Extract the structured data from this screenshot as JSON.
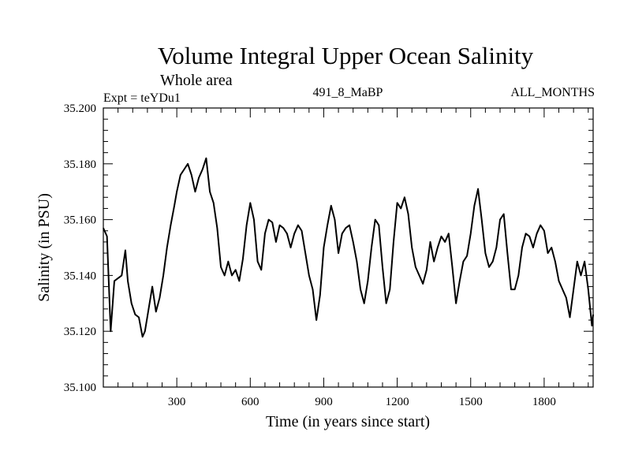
{
  "chart_data": {
    "type": "line",
    "title": "Volume Integral Upper Ocean Salinity",
    "subtitle": "Whole area",
    "experiment_label": "Expt = teYDu1",
    "run_label": "491_8_MaBP",
    "months_label": "ALL_MONTHS",
    "xlabel": "Time (in years since start)",
    "ylabel": "Salinity (in PSU)",
    "xlim": [
      0,
      2000
    ],
    "ylim": [
      35.1,
      35.2
    ],
    "xticks": [
      300,
      600,
      900,
      1200,
      1500,
      1800
    ],
    "xtick_labels": [
      "300",
      "600",
      "900",
      "1200",
      "1500",
      "1800"
    ],
    "yticks": [
      35.1,
      35.12,
      35.14,
      35.16,
      35.18,
      35.2
    ],
    "ytick_labels": [
      "35.100",
      "35.120",
      "35.140",
      "35.160",
      "35.180",
      "35.200"
    ],
    "grid": false,
    "series": [
      {
        "name": "Salinity",
        "x": [
          0,
          15,
          30,
          45,
          60,
          75,
          90,
          100,
          115,
          130,
          145,
          160,
          170,
          185,
          200,
          215,
          230,
          245,
          260,
          275,
          290,
          300,
          315,
          330,
          345,
          360,
          375,
          390,
          405,
          420,
          435,
          450,
          465,
          480,
          495,
          510,
          525,
          540,
          555,
          570,
          585,
          600,
          615,
          630,
          645,
          660,
          675,
          690,
          705,
          720,
          735,
          750,
          765,
          780,
          795,
          810,
          825,
          840,
          855,
          870,
          885,
          900,
          915,
          930,
          945,
          960,
          975,
          990,
          1005,
          1020,
          1035,
          1050,
          1065,
          1080,
          1095,
          1110,
          1125,
          1140,
          1155,
          1170,
          1185,
          1200,
          1215,
          1230,
          1245,
          1260,
          1275,
          1290,
          1305,
          1320,
          1335,
          1350,
          1365,
          1380,
          1395,
          1410,
          1425,
          1440,
          1455,
          1470,
          1485,
          1500,
          1515,
          1530,
          1545,
          1560,
          1575,
          1590,
          1605,
          1620,
          1635,
          1650,
          1665,
          1680,
          1695,
          1710,
          1725,
          1740,
          1755,
          1770,
          1785,
          1800,
          1815,
          1830,
          1845,
          1860,
          1875,
          1890,
          1905,
          1920,
          1935,
          1950,
          1965,
          1980,
          1995,
          2000
        ],
        "values": [
          35.157,
          35.154,
          35.12,
          35.138,
          35.139,
          35.14,
          35.149,
          35.138,
          35.13,
          35.126,
          35.125,
          35.118,
          35.12,
          35.128,
          35.136,
          35.127,
          35.132,
          35.14,
          35.15,
          35.158,
          35.165,
          35.17,
          35.176,
          35.178,
          35.18,
          35.176,
          35.17,
          35.175,
          35.178,
          35.182,
          35.17,
          35.166,
          35.157,
          35.143,
          35.14,
          35.145,
          35.14,
          35.142,
          35.138,
          35.146,
          35.158,
          35.166,
          35.16,
          35.145,
          35.142,
          35.155,
          35.16,
          35.159,
          35.152,
          35.158,
          35.157,
          35.155,
          35.15,
          35.155,
          35.158,
          35.156,
          35.148,
          35.14,
          35.135,
          35.124,
          35.133,
          35.15,
          35.158,
          35.165,
          35.16,
          35.148,
          35.155,
          35.157,
          35.158,
          35.152,
          35.145,
          35.135,
          35.13,
          35.138,
          35.15,
          35.16,
          35.158,
          35.143,
          35.13,
          35.135,
          35.152,
          35.166,
          35.164,
          35.168,
          35.162,
          35.15,
          35.143,
          35.14,
          35.137,
          35.142,
          35.152,
          35.145,
          35.15,
          35.154,
          35.152,
          35.155,
          35.143,
          35.13,
          35.138,
          35.145,
          35.147,
          35.155,
          35.165,
          35.171,
          35.16,
          35.148,
          35.143,
          35.145,
          35.15,
          35.16,
          35.162,
          35.148,
          35.135,
          35.135,
          35.14,
          35.15,
          35.155,
          35.154,
          35.15,
          35.155,
          35.158,
          35.156,
          35.148,
          35.15,
          35.145,
          35.138,
          35.135,
          35.132,
          35.125,
          35.135,
          35.145,
          35.14,
          35.145,
          35.135,
          35.122,
          35.126
        ]
      }
    ]
  }
}
